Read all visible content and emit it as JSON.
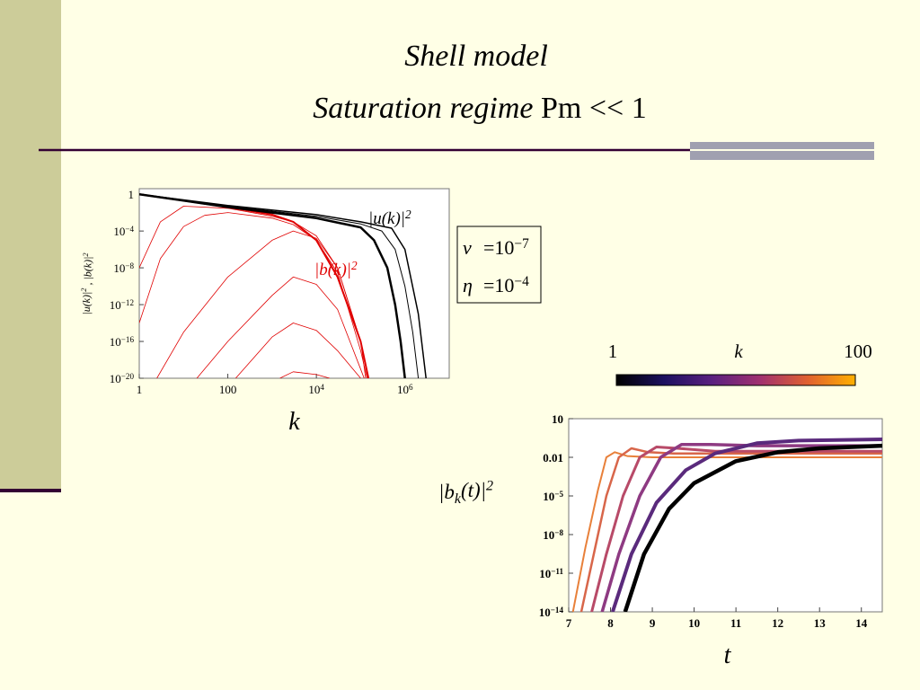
{
  "slide": {
    "title": "Shell model",
    "subtitle_italic": "Saturation regime",
    "subtitle_rest": "Pm << 1"
  },
  "params": [
    {
      "symbol": "ν",
      "eq": "=",
      "base": "10",
      "exponent": "−7"
    },
    {
      "symbol": "η",
      "eq": "=",
      "base": "10",
      "exponent": "−4"
    }
  ],
  "chart_data": [
    {
      "type": "line",
      "xscale": "log",
      "yscale": "log",
      "x_label": "k",
      "y_label": {
        "text1": "|u(k)|",
        "sup1": "2",
        "text2": " , |b(k)|",
        "sup2": "2"
      },
      "annotations": [
        {
          "text": "|u(k)|",
          "sup": "2",
          "color": "#000000"
        },
        {
          "text": "|b(k)|",
          "sup": "2",
          "color": "#e00000"
        }
      ],
      "xlim": [
        1,
        10000000
      ],
      "ylim": [
        1e-20,
        4
      ],
      "xticks": [
        1,
        100,
        {
          "value": 10000,
          "label": "10",
          "exponent": "4"
        },
        {
          "value": 1000000,
          "label": "10",
          "exponent": "6"
        }
      ],
      "yticks": [
        1,
        {
          "value": 0.0001,
          "label": "10",
          "exponent": "−4"
        },
        {
          "value": 1e-08,
          "label": "10",
          "exponent": "−8"
        },
        {
          "value": 1e-12,
          "label": "10",
          "exponent": "−12"
        },
        {
          "value": 1e-16,
          "label": "10",
          "exponent": "−16"
        },
        {
          "value": 1e-20,
          "label": "10",
          "exponent": "−20"
        }
      ],
      "series": [
        {
          "color": "#e00000",
          "width": 0.8,
          "x": [
            2.5,
            10,
            100,
            1000,
            3000,
            10000,
            30000,
            100000,
            130000
          ],
          "values": [
            1e-20,
            1e-15,
            1e-09,
            1e-05,
            0.0001,
            1.6e-05,
            1e-08,
            1e-16,
            1e-20
          ]
        },
        {
          "color": "#e00000",
          "width": 0.8,
          "x": [
            20,
            100,
            1000,
            3000,
            10000,
            30000,
            100000,
            120000
          ],
          "values": [
            1e-20,
            1e-16,
            1e-11,
            1e-09,
            1.6e-10,
            3e-13,
            1e-19,
            1e-20
          ]
        },
        {
          "color": "#e00000",
          "width": 0.8,
          "x": [
            150,
            1000,
            3000,
            10000,
            30000,
            100000
          ],
          "values": [
            1e-20,
            3e-16,
            1e-14,
            1.6e-15,
            1e-17,
            1e-20
          ]
        },
        {
          "color": "#e00000",
          "width": 0.8,
          "x": [
            1500,
            3000,
            10000,
            20000
          ],
          "values": [
            1e-20,
            5e-20,
            2.5e-20,
            1e-20
          ]
        },
        {
          "color": "#e00000",
          "width": 0.8,
          "x": [
            1,
            3,
            10,
            100,
            1000,
            3000,
            10000,
            30000,
            100000,
            150000
          ],
          "values": [
            1e-08,
            0.001,
            0.05,
            0.03,
            0.004,
            0.001,
            3e-05,
            1e-08,
            1e-16,
            1e-20
          ]
        },
        {
          "color": "#e00000",
          "width": 0.8,
          "x": [
            1,
            3,
            10,
            30,
            100,
            1000,
            3000,
            10000,
            30000,
            100000,
            140000
          ],
          "values": [
            1e-14,
            1e-07,
            0.0003,
            0.005,
            0.01,
            0.0025,
            0.0005,
            1e-05,
            3e-09,
            1e-17,
            1e-20
          ]
        },
        {
          "color": "#e00000",
          "width": 2,
          "x": [
            1,
            10,
            100,
            1000,
            3000,
            10000,
            30000,
            100000,
            150000
          ],
          "values": [
            1,
            0.2,
            0.04,
            0.006,
            0.001,
            1e-05,
            1e-09,
            1e-16,
            1e-20
          ]
        },
        {
          "color": "#000000",
          "width": 1,
          "x": [
            1,
            100,
            10000,
            100000,
            300000,
            600000,
            1000000,
            1500000,
            2000000
          ],
          "values": [
            1,
            0.05,
            0.004,
            0.0006,
            0.0001,
            1e-06,
            1e-10,
            1e-15,
            1e-20
          ]
        },
        {
          "color": "#000000",
          "width": 1.5,
          "x": [
            1,
            100,
            10000,
            100000,
            500000,
            1000000,
            2000000,
            3000000
          ],
          "values": [
            1,
            0.06,
            0.006,
            0.001,
            0.0002,
            1e-06,
            1e-13,
            1e-20
          ]
        },
        {
          "color": "#000000",
          "width": 2.5,
          "x": [
            1,
            10,
            100,
            1000,
            10000,
            100000,
            200000,
            400000,
            600000,
            800000,
            1000000
          ],
          "values": [
            1,
            0.2,
            0.04,
            0.01,
            0.0025,
            0.00025,
            1e-05,
            1e-08,
            1e-12,
            1e-16,
            1e-20
          ]
        }
      ]
    },
    {
      "type": "line",
      "xscale": "linear",
      "yscale": "log",
      "x_label": "t",
      "y_label": {
        "text1": "|b",
        "sub": "k",
        "text2": "(t)|",
        "sup": "2"
      },
      "colorbar": {
        "title": "k",
        "ticks": [
          1,
          100
        ],
        "colors": [
          "#000000",
          "#1c1060",
          "#5a2080",
          "#a03070",
          "#e06030",
          "#ffb000"
        ]
      },
      "xlim": [
        7,
        14.5
      ],
      "ylim": [
        1e-14,
        10
      ],
      "xticks": [
        7,
        8,
        9,
        10,
        11,
        12,
        13,
        14
      ],
      "yticks": [
        10,
        0.01,
        {
          "value": 1e-05,
          "label": "10",
          "exponent": "−5"
        },
        {
          "value": 1e-08,
          "label": "10",
          "exponent": "−8"
        },
        {
          "value": 1e-11,
          "label": "10",
          "exponent": "−11"
        },
        {
          "value": 1e-14,
          "label": "10",
          "exponent": "−14"
        }
      ],
      "series": [
        {
          "color": "#e8803a",
          "width": 2,
          "x": [
            7.1,
            7.4,
            7.7,
            7.9,
            8.1,
            8.4,
            9,
            14.5
          ],
          "values": [
            1e-14,
            1e-09,
            3e-05,
            0.01,
            0.025,
            0.0125,
            0.01,
            0.01
          ]
        },
        {
          "color": "#d8664a",
          "width": 2.5,
          "x": [
            7.3,
            7.6,
            7.9,
            8.2,
            8.5,
            8.9,
            9.5,
            14.5
          ],
          "values": [
            1e-14,
            3e-10,
            1e-05,
            0.01,
            0.05,
            0.025,
            0.02,
            0.02
          ]
        },
        {
          "color": "#b84a68",
          "width": 3,
          "x": [
            7.55,
            7.9,
            8.3,
            8.7,
            9.1,
            9.6,
            10.5,
            14.5
          ],
          "values": [
            1e-14,
            3e-10,
            1e-05,
            0.01,
            0.063,
            0.05,
            0.03,
            0.03
          ]
        },
        {
          "color": "#8e3a82",
          "width": 3.5,
          "x": [
            7.8,
            8.2,
            8.7,
            9.2,
            9.7,
            10.4,
            11.5,
            14.5
          ],
          "values": [
            1e-14,
            3e-10,
            1e-05,
            0.01,
            0.1,
            0.1,
            0.08,
            0.08
          ]
        },
        {
          "color": "#5a2a7c",
          "width": 4,
          "x": [
            8.05,
            8.5,
            9.1,
            9.8,
            10.5,
            11.5,
            12.5,
            14.5
          ],
          "values": [
            1e-14,
            3e-10,
            3e-06,
            0.001,
            0.02,
            0.125,
            0.2,
            0.25
          ]
        },
        {
          "color": "#000000",
          "width": 4.5,
          "x": [
            8.35,
            8.8,
            9.4,
            10,
            11,
            12,
            13,
            14.5
          ],
          "values": [
            1e-14,
            3e-10,
            1e-06,
            0.0001,
            0.005,
            0.025,
            0.05,
            0.08
          ]
        }
      ]
    }
  ]
}
